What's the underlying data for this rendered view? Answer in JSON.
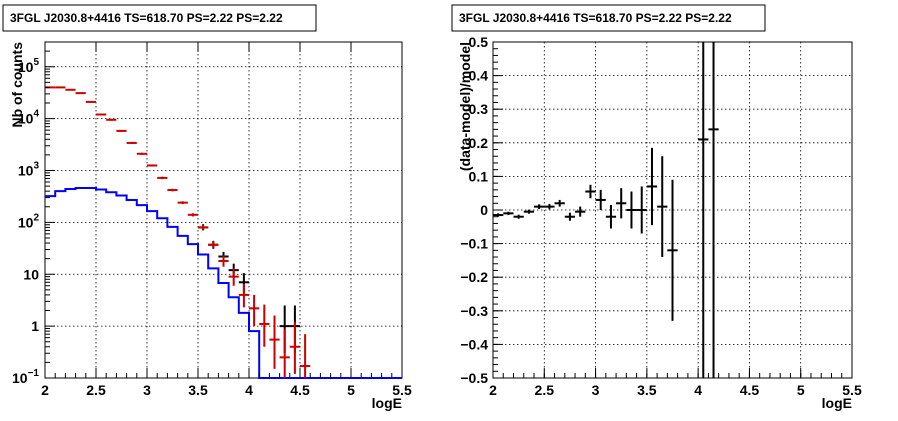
{
  "chart_data": [
    {
      "type": "histogram",
      "title": "3FGL J2030.8+4416 TS=618.70 PS=2.22 PS=2.22",
      "xlabel": "logE",
      "ylabel": "Nb of counts",
      "xlim": [
        2,
        5.5
      ],
      "ylim": [
        0.1,
        300000
      ],
      "y_log_scale": true,
      "grid": true,
      "x_ticks": [
        "2",
        "2.5",
        "3",
        "3.5",
        "4",
        "4.5",
        "5",
        "5.5"
      ],
      "y_ticks": [
        {
          "value": 0.1,
          "base": "10",
          "exp": "−1"
        },
        {
          "value": 1,
          "base": "1",
          "exp": ""
        },
        {
          "value": 10,
          "base": "10",
          "exp": ""
        },
        {
          "value": 100,
          "base": "10",
          "exp": "2"
        },
        {
          "value": 1000,
          "base": "10",
          "exp": "3"
        },
        {
          "value": 10000,
          "base": "10",
          "exp": "4"
        },
        {
          "value": 100000,
          "base": "10",
          "exp": "5"
        }
      ],
      "bin_edges": [
        2.0,
        2.1,
        2.2,
        2.3,
        2.4,
        2.5,
        2.6,
        2.7,
        2.8,
        2.9,
        3.0,
        3.1,
        3.2,
        3.3,
        3.4,
        3.5,
        3.6,
        3.7,
        3.8,
        3.9,
        4.0,
        4.1,
        4.2,
        4.3,
        4.4,
        4.5,
        4.6,
        4.7,
        4.8,
        4.9,
        5.0,
        5.1,
        5.2,
        5.3,
        5.4,
        5.5
      ],
      "series": [
        {
          "color": "#0000ff",
          "style": "step",
          "values": [
            320,
            400,
            440,
            460,
            460,
            430,
            380,
            330,
            270,
            215,
            165,
            120,
            82,
            55,
            38,
            24,
            13,
            6.8,
            3.6,
            1.8,
            0.8,
            0.1,
            0.1,
            0.1,
            0.1,
            0.1,
            0.1,
            0.1,
            0.1,
            0.1,
            0.1,
            0.1,
            0.1,
            0.1,
            0.1
          ]
        },
        {
          "color": "#000000",
          "style": "errorbars",
          "points": [
            {
              "x": 3.55,
              "y": 80,
              "lo": 70,
              "hi": 92
            },
            {
              "x": 3.65,
              "y": 37,
              "lo": 31,
              "hi": 44
            },
            {
              "x": 3.75,
              "y": 22,
              "lo": 17,
              "hi": 27
            },
            {
              "x": 3.85,
              "y": 12,
              "lo": 8.5,
              "hi": 16
            },
            {
              "x": 3.95,
              "y": 7,
              "lo": 4.5,
              "hi": 10.5
            },
            {
              "x": 4.35,
              "y": 1,
              "lo": 0.3,
              "hi": 2.5
            },
            {
              "x": 4.45,
              "y": 1,
              "lo": 0.3,
              "hi": 2.5
            }
          ]
        },
        {
          "color": "#cc0000",
          "style": "errorbars",
          "points": [
            {
              "x": 2.05,
              "y": 40000,
              "lo": 39000,
              "hi": 41000
            },
            {
              "x": 2.15,
              "y": 40000,
              "lo": 39000,
              "hi": 41000
            },
            {
              "x": 2.25,
              "y": 36000,
              "lo": 35000,
              "hi": 37000
            },
            {
              "x": 2.35,
              "y": 31000,
              "lo": 30000,
              "hi": 32000
            },
            {
              "x": 2.45,
              "y": 21000,
              "lo": 20300,
              "hi": 21700
            },
            {
              "x": 2.55,
              "y": 12000,
              "lo": 11500,
              "hi": 12500
            },
            {
              "x": 2.65,
              "y": 9500,
              "lo": 9100,
              "hi": 9900
            },
            {
              "x": 2.75,
              "y": 5800,
              "lo": 5550,
              "hi": 6050
            },
            {
              "x": 2.85,
              "y": 3400,
              "lo": 3250,
              "hi": 3550
            },
            {
              "x": 2.95,
              "y": 2100,
              "lo": 2000,
              "hi": 2200
            },
            {
              "x": 3.05,
              "y": 1250,
              "lo": 1190,
              "hi": 1310
            },
            {
              "x": 3.15,
              "y": 720,
              "lo": 680,
              "hi": 760
            },
            {
              "x": 3.25,
              "y": 420,
              "lo": 395,
              "hi": 445
            },
            {
              "x": 3.35,
              "y": 240,
              "lo": 225,
              "hi": 255
            },
            {
              "x": 3.45,
              "y": 140,
              "lo": 130,
              "hi": 150
            },
            {
              "x": 3.55,
              "y": 80,
              "lo": 72,
              "hi": 89
            },
            {
              "x": 3.65,
              "y": 37,
              "lo": 32,
              "hi": 43
            },
            {
              "x": 3.75,
              "y": 18,
              "lo": 14,
              "hi": 23
            },
            {
              "x": 3.85,
              "y": 9,
              "lo": 6,
              "hi": 13
            },
            {
              "x": 3.95,
              "y": 4,
              "lo": 2.3,
              "hi": 6.5
            },
            {
              "x": 4.05,
              "y": 2.2,
              "lo": 1,
              "hi": 4
            },
            {
              "x": 4.15,
              "y": 1.1,
              "lo": 0.4,
              "hi": 2.6
            },
            {
              "x": 4.25,
              "y": 0.55,
              "lo": 0.15,
              "hi": 1.6
            },
            {
              "x": 4.35,
              "y": 0.25,
              "lo": 0.1,
              "hi": 0.9
            },
            {
              "x": 4.45,
              "y": 0.4,
              "lo": 0.12,
              "hi": 1.2
            },
            {
              "x": 4.55,
              "y": 0.17,
              "lo": 0.1,
              "hi": 0.7
            }
          ]
        }
      ]
    },
    {
      "type": "errorbar",
      "title": "3FGL J2030.8+4416 TS=618.70 PS=2.22 PS=2.22",
      "xlabel": "logE",
      "ylabel": "(data-model)/model",
      "xlim": [
        2,
        5.5
      ],
      "ylim": [
        -0.5,
        0.5
      ],
      "grid": true,
      "x_ticks": [
        "2",
        "2.5",
        "3",
        "3.5",
        "4",
        "4.5",
        "5",
        "5.5"
      ],
      "y_ticks": [
        {
          "value": -0.5,
          "label": "−0.5"
        },
        {
          "value": -0.4,
          "label": "−0.4"
        },
        {
          "value": -0.3,
          "label": "−0.3"
        },
        {
          "value": -0.2,
          "label": "−0.2"
        },
        {
          "value": -0.1,
          "label": "−0.1"
        },
        {
          "value": 0,
          "label": "0"
        },
        {
          "value": 0.1,
          "label": "0.1"
        },
        {
          "value": 0.2,
          "label": "0.2"
        },
        {
          "value": 0.3,
          "label": "0.3"
        },
        {
          "value": 0.4,
          "label": "0.4"
        },
        {
          "value": 0.5,
          "label": "0.5"
        }
      ],
      "series": [
        {
          "color": "#000000",
          "points": [
            {
              "x": 2.05,
              "y": -0.015,
              "err": 0.005
            },
            {
              "x": 2.15,
              "y": -0.01,
              "err": 0.005
            },
            {
              "x": 2.25,
              "y": -0.02,
              "err": 0.006
            },
            {
              "x": 2.35,
              "y": -0.005,
              "err": 0.006
            },
            {
              "x": 2.45,
              "y": 0.01,
              "err": 0.007
            },
            {
              "x": 2.55,
              "y": 0.01,
              "err": 0.008
            },
            {
              "x": 2.65,
              "y": 0.02,
              "err": 0.01
            },
            {
              "x": 2.75,
              "y": -0.02,
              "err": 0.012
            },
            {
              "x": 2.85,
              "y": -0.005,
              "err": 0.015
            },
            {
              "x": 2.95,
              "y": 0.055,
              "err": 0.02
            },
            {
              "x": 3.05,
              "y": 0.03,
              "err": 0.03
            },
            {
              "x": 3.15,
              "y": -0.02,
              "err": 0.035
            },
            {
              "x": 3.25,
              "y": 0.02,
              "err": 0.045
            },
            {
              "x": 3.35,
              "y": 0.0,
              "err": 0.055
            },
            {
              "x": 3.45,
              "y": 0.0,
              "err": 0.07
            },
            {
              "x": 3.55,
              "y": 0.07,
              "err": 0.115
            },
            {
              "x": 3.65,
              "y": 0.01,
              "err": 0.15
            },
            {
              "x": 3.75,
              "y": -0.12,
              "err": 0.21
            },
            {
              "x": 4.05,
              "y": 0.21,
              "err": 0.8
            },
            {
              "x": 4.15,
              "y": 0.24,
              "err": 0.8
            }
          ]
        }
      ]
    }
  ]
}
